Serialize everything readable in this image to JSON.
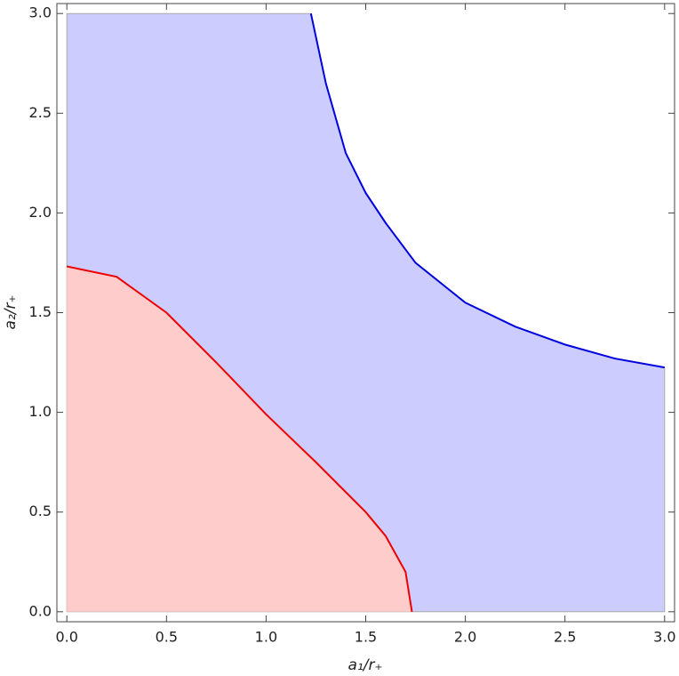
{
  "chart_data": {
    "type": "region",
    "xlabel": "a₁/r₊",
    "ylabel": "a₂/r₊",
    "plot_range": [
      0,
      3
    ],
    "series": [
      {
        "color": "#0000dd",
        "fill": "#ccccff",
        "x": [
          1.225,
          1.3,
          1.4,
          1.5,
          1.6,
          1.75,
          2.0,
          2.25,
          2.5,
          2.75,
          3.0
        ],
        "values": [
          3.0,
          2.65,
          2.3,
          2.1,
          1.95,
          1.75,
          1.55,
          1.43,
          1.34,
          1.27,
          1.225
        ]
      },
      {
        "color": "#ee0000",
        "fill": "#ffcccc",
        "x": [
          0,
          0.25,
          0.5,
          0.75,
          1.0,
          1.25,
          1.5,
          1.6,
          1.7,
          1.732
        ],
        "values": [
          1.732,
          1.68,
          1.5,
          1.25,
          0.99,
          0.75,
          0.5,
          0.38,
          0.2,
          0
        ]
      }
    ],
    "xlim": [
      -0.05,
      3.05
    ],
    "ylim": [
      -0.05,
      3.05
    ],
    "xticks": [
      {
        "value": 0,
        "label": "0.0"
      },
      0.5,
      {
        "value": 1,
        "label": "1.0"
      },
      1.5,
      {
        "value": 2,
        "label": "2.0"
      },
      2.5,
      {
        "value": 3,
        "label": "3.0"
      }
    ],
    "yticks": [
      {
        "value": 0,
        "label": "0.0"
      },
      0.5,
      {
        "value": 1,
        "label": "1.0"
      },
      1.5,
      {
        "value": 2,
        "label": "2.0"
      },
      2.5,
      {
        "value": 3,
        "label": "3.0"
      }
    ]
  }
}
